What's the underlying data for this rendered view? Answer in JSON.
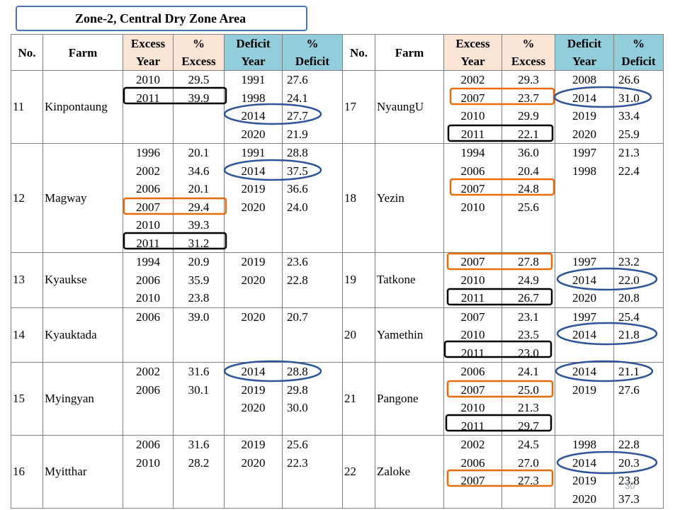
{
  "title": "Zone-2, Central Dry Zone Area",
  "headers": {
    "no": "No.",
    "farm": "Farm",
    "excess_year": [
      "Excess",
      "Year"
    ],
    "pct_excess": [
      "%",
      "Excess"
    ],
    "deficit_year": [
      "Deficit",
      "Year"
    ],
    "pct_deficit": [
      "%",
      "Deficit"
    ]
  },
  "rows": [
    {
      "left": {
        "no": "11",
        "farm": "Kinpontaung",
        "excess": [
          [
            "2010",
            "29.5"
          ],
          [
            "2011",
            "39.9"
          ]
        ],
        "deficit": [
          [
            "1991",
            "27.6"
          ],
          [
            "1998",
            "24.1"
          ],
          [
            "2014",
            "27.7"
          ],
          [
            "2020",
            "21.9"
          ]
        ]
      },
      "right": {
        "no": "17",
        "farm": "NyaungU",
        "excess": [
          [
            "2002",
            "29.3"
          ],
          [
            "2007",
            "23.7"
          ],
          [
            "2010",
            "29.9"
          ],
          [
            "2011",
            "22.1"
          ]
        ],
        "deficit": [
          [
            "2008",
            "26.6"
          ],
          [
            "2014",
            "31.0"
          ],
          [
            "2019",
            "33.4"
          ],
          [
            "2020",
            "25.9"
          ]
        ]
      }
    },
    {
      "left": {
        "no": "12",
        "farm": "Magway",
        "excess": [
          [
            "1996",
            "20.1"
          ],
          [
            "2002",
            "34.6"
          ],
          [
            "2006",
            "20.1"
          ],
          [
            "2007",
            "29.4"
          ],
          [
            "2010",
            "39.3"
          ],
          [
            "2011",
            "31.2"
          ]
        ],
        "deficit": [
          [
            "1991",
            "28.8"
          ],
          [
            "2014",
            "37.5"
          ],
          [
            "2019",
            "36.6"
          ],
          [
            "2020",
            "24.0"
          ]
        ]
      },
      "right": {
        "no": "18",
        "farm": "Yezin",
        "excess": [
          [
            "1994",
            "36.0"
          ],
          [
            "2006",
            "20.4"
          ],
          [
            "2007",
            "24.8"
          ],
          [
            "2010",
            "25.6"
          ]
        ],
        "deficit": [
          [
            "1997",
            "21.3"
          ],
          [
            "1998",
            "22.4"
          ]
        ]
      }
    },
    {
      "left": {
        "no": "13",
        "farm": "Kyaukse",
        "excess": [
          [
            "1994",
            "20.9"
          ],
          [
            "2006",
            "35.9"
          ],
          [
            "2010",
            "23.8"
          ]
        ],
        "deficit": [
          [
            "2019",
            "23.6"
          ],
          [
            "2020",
            "22.8"
          ]
        ]
      },
      "right": {
        "no": "19",
        "farm": "Tatkone",
        "excess": [
          [
            "2007",
            "27.8"
          ],
          [
            "2010",
            "24.9"
          ],
          [
            "2011",
            "26.7"
          ]
        ],
        "deficit": [
          [
            "1997",
            "23.2"
          ],
          [
            "2014",
            "22.0"
          ],
          [
            "2020",
            "20.8"
          ]
        ]
      }
    },
    {
      "left": {
        "no": "14",
        "farm": "Kyauktada",
        "excess": [
          [
            "2006",
            "39.0"
          ]
        ],
        "deficit": [
          [
            "2020",
            "20.7"
          ]
        ]
      },
      "right": {
        "no": "20",
        "farm": "Yamethin",
        "excess": [
          [
            "2007",
            "23.1"
          ],
          [
            "2010",
            "23.5"
          ],
          [
            "2011",
            "23.0"
          ]
        ],
        "deficit": [
          [
            "1997",
            "25.4"
          ],
          [
            "2014",
            "21.8"
          ]
        ]
      }
    },
    {
      "left": {
        "no": "15",
        "farm": "Myingyan",
        "excess": [
          [
            "2002",
            "31.6"
          ],
          [
            "2006",
            "30.1"
          ]
        ],
        "deficit": [
          [
            "2014",
            "28.8"
          ],
          [
            "2019",
            "29.8"
          ],
          [
            "2020",
            "30.0"
          ]
        ]
      },
      "right": {
        "no": "21",
        "farm": "Pangone",
        "excess": [
          [
            "2006",
            "24.1"
          ],
          [
            "2007",
            "25.0"
          ],
          [
            "2010",
            "21.3"
          ],
          [
            "2011",
            "29.7"
          ]
        ],
        "deficit": [
          [
            "2014",
            "21.1"
          ],
          [
            "2019",
            "27.6"
          ]
        ]
      }
    },
    {
      "left": {
        "no": "16",
        "farm": "Myitthar",
        "excess": [
          [
            "2006",
            "31.6"
          ],
          [
            "2010",
            "28.2"
          ]
        ],
        "deficit": [
          [
            "2019",
            "25.6"
          ],
          [
            "2020",
            "22.3"
          ]
        ]
      },
      "right": {
        "no": "22",
        "farm": "Zaloke",
        "excess": [
          [
            "2002",
            "24.5"
          ],
          [
            "2006",
            "27.0"
          ],
          [
            "2007",
            "27.3"
          ]
        ],
        "deficit": [
          [
            "1998",
            "22.8"
          ],
          [
            "2014",
            "20.3"
          ],
          [
            "2019",
            "23.8"
          ],
          [
            "2020",
            "37.3"
          ]
        ]
      }
    }
  ],
  "page_number": "30",
  "colors": {
    "orange_header": "#fbe5d6",
    "blue_header": "#92cddc",
    "orange_mark": "#e46c0a",
    "blue_mark": "#2f5597",
    "black_mark": "#000000"
  }
}
